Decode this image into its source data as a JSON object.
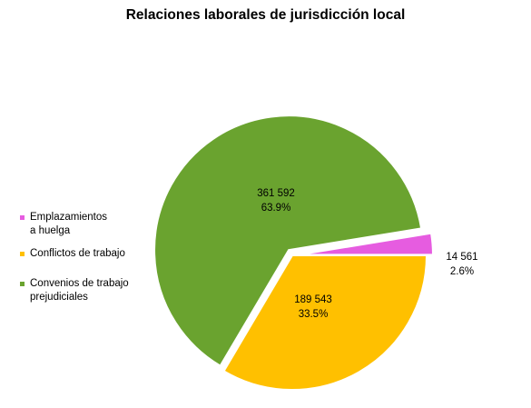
{
  "chart_data": {
    "type": "pie",
    "title": "Relaciones laborales de jurisdicción local",
    "slices": [
      {
        "name": "Emplazamientos\na huelga",
        "value": 14561,
        "value_label": "14 561",
        "percent_label": "2.6%",
        "color": "#e65ce0",
        "exploded": true
      },
      {
        "name": "Conflictos de trabajo",
        "value": 189543,
        "value_label": "189 543",
        "percent_label": "33.5%",
        "color": "#ffc000",
        "exploded": false
      },
      {
        "name": "Convenios de trabajo\nprejudiciales",
        "value": 361592,
        "value_label": "361 592",
        "percent_label": "63.9%",
        "color": "#6aa32f",
        "exploded": true
      }
    ],
    "legend_position": "left"
  }
}
